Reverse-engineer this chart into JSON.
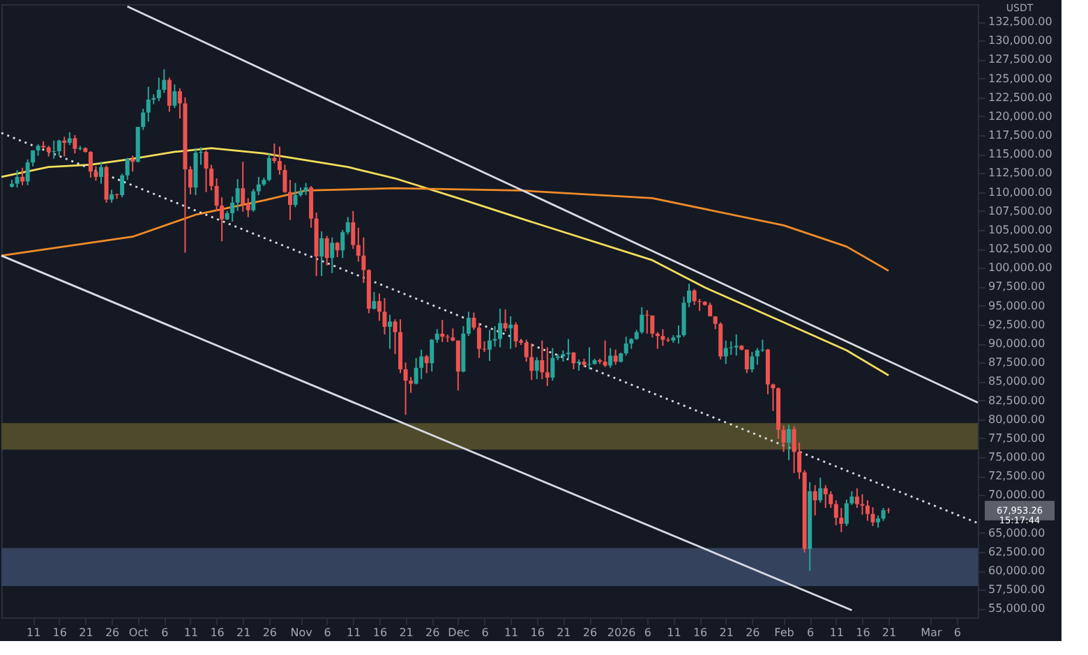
{
  "chart_data": {
    "type": "candlestick",
    "x": [
      "2025-09-07",
      "2025-09-08",
      "2025-09-09",
      "2025-09-10",
      "2025-09-11",
      "2025-09-12",
      "2025-09-13",
      "2025-09-14",
      "2025-09-15",
      "2025-09-16",
      "2025-09-17",
      "2025-09-18",
      "2025-09-19",
      "2025-09-20",
      "2025-09-21",
      "2025-09-22",
      "2025-09-23",
      "2025-09-24",
      "2025-09-25",
      "2025-09-26",
      "2025-09-27",
      "2025-09-28",
      "2025-09-29",
      "2025-09-30",
      "2025-10-01",
      "2025-10-02",
      "2025-10-03",
      "2025-10-04",
      "2025-10-05",
      "2025-10-06",
      "2025-10-07",
      "2025-10-08",
      "2025-10-09",
      "2025-10-10",
      "2025-10-11",
      "2025-10-12",
      "2025-10-13",
      "2025-10-14",
      "2025-10-15",
      "2025-10-16",
      "2025-10-17",
      "2025-10-18",
      "2025-10-19",
      "2025-10-20",
      "2025-10-21",
      "2025-10-22",
      "2025-10-23",
      "2025-10-24",
      "2025-10-25",
      "2025-10-26",
      "2025-10-27",
      "2025-10-28",
      "2025-10-29",
      "2025-10-30",
      "2025-10-31",
      "2025-11-01",
      "2025-11-02",
      "2025-11-03",
      "2025-11-04",
      "2025-11-05",
      "2025-11-06",
      "2025-11-07",
      "2025-11-08",
      "2025-11-09",
      "2025-11-10",
      "2025-11-11",
      "2025-11-12",
      "2025-11-13",
      "2025-11-14",
      "2025-11-15",
      "2025-11-16",
      "2025-11-17",
      "2025-11-18",
      "2025-11-19",
      "2025-11-20",
      "2025-11-21",
      "2025-11-22",
      "2025-11-23",
      "2025-11-24",
      "2025-11-25",
      "2025-11-26",
      "2025-11-27",
      "2025-11-28",
      "2025-11-29",
      "2025-11-30",
      "2025-12-01",
      "2025-12-02",
      "2025-12-03",
      "2025-12-04",
      "2025-12-05",
      "2025-12-06",
      "2025-12-07",
      "2025-12-08",
      "2025-12-09",
      "2025-12-10",
      "2025-12-11",
      "2025-12-12",
      "2025-12-13",
      "2025-12-14",
      "2025-12-15",
      "2025-12-16",
      "2025-12-17",
      "2025-12-18",
      "2025-12-19",
      "2025-12-20",
      "2025-12-21",
      "2025-12-22",
      "2025-12-23",
      "2025-12-24",
      "2025-12-25",
      "2025-12-26",
      "2025-12-27",
      "2025-12-28",
      "2025-12-29",
      "2025-12-30",
      "2025-12-31",
      "2026-01-01",
      "2026-01-02",
      "2026-01-03",
      "2026-01-04",
      "2026-01-05",
      "2026-01-06",
      "2026-01-07",
      "2026-01-08",
      "2026-01-09",
      "2026-01-10",
      "2026-01-11",
      "2026-01-12",
      "2026-01-13",
      "2026-01-14",
      "2026-01-15",
      "2026-01-16",
      "2026-01-17",
      "2026-01-18",
      "2026-01-19",
      "2026-01-20",
      "2026-01-21",
      "2026-01-22",
      "2026-01-23",
      "2026-01-24",
      "2026-01-25",
      "2026-01-26",
      "2026-01-27",
      "2026-01-28",
      "2026-01-29",
      "2026-01-30",
      "2026-01-31",
      "2026-02-01",
      "2026-02-02",
      "2026-02-03",
      "2026-02-04",
      "2026-02-05",
      "2026-02-06",
      "2026-02-07",
      "2026-02-08",
      "2026-02-09",
      "2026-02-10",
      "2026-02-11",
      "2026-02-12",
      "2026-02-13",
      "2026-02-14",
      "2026-02-15",
      "2026-02-16",
      "2026-02-17",
      "2026-02-18",
      "2026-02-19",
      "2026-02-20",
      "2026-02-21"
    ],
    "ohlc": [
      [
        110700,
        111600,
        110600,
        111100
      ],
      [
        111100,
        112900,
        110600,
        112000
      ],
      [
        112000,
        113200,
        110900,
        111400
      ],
      [
        111400,
        114300,
        110900,
        113900
      ],
      [
        113900,
        115500,
        113400,
        115500
      ],
      [
        115500,
        116300,
        114800,
        116100
      ],
      [
        116100,
        116700,
        115700,
        115900
      ],
      [
        115900,
        116100,
        114700,
        115300
      ],
      [
        115300,
        116800,
        114400,
        115400
      ],
      [
        115400,
        116900,
        114800,
        116800
      ],
      [
        116800,
        117300,
        114700,
        116500
      ],
      [
        116500,
        117900,
        116200,
        117100
      ],
      [
        117100,
        117500,
        115100,
        115700
      ],
      [
        115700,
        116100,
        115500,
        115800
      ],
      [
        115800,
        115900,
        115200,
        115300
      ],
      [
        115300,
        115400,
        111900,
        112700
      ],
      [
        112700,
        113400,
        111500,
        112000
      ],
      [
        112000,
        114000,
        111100,
        113300
      ],
      [
        113300,
        113500,
        108600,
        109000
      ],
      [
        109000,
        110300,
        108600,
        109700
      ],
      [
        109700,
        109800,
        109100,
        109600
      ],
      [
        109600,
        112400,
        109300,
        112200
      ],
      [
        112200,
        114500,
        111600,
        114400
      ],
      [
        114400,
        114800,
        112700,
        114000
      ],
      [
        114000,
        118600,
        113900,
        118600
      ],
      [
        118600,
        121000,
        118200,
        120500
      ],
      [
        120500,
        123900,
        119300,
        122200
      ],
      [
        122200,
        122900,
        121600,
        122400
      ],
      [
        122400,
        125100,
        122000,
        123500
      ],
      [
        123500,
        126200,
        123100,
        124800
      ],
      [
        124800,
        125100,
        120600,
        121400
      ],
      [
        121400,
        124200,
        121100,
        123300
      ],
      [
        123300,
        123700,
        119700,
        121700
      ],
      [
        121700,
        122500,
        102000,
        113000
      ],
      [
        113000,
        113400,
        109700,
        110600
      ],
      [
        110600,
        115800,
        109600,
        115200
      ],
      [
        115200,
        115900,
        113600,
        115300
      ],
      [
        115300,
        115500,
        110000,
        113100
      ],
      [
        113100,
        113600,
        110200,
        110800
      ],
      [
        110800,
        111800,
        107500,
        108200
      ],
      [
        108200,
        109300,
        103500,
        106400
      ],
      [
        106400,
        107500,
        106300,
        107200
      ],
      [
        107200,
        109400,
        106100,
        108600
      ],
      [
        108600,
        111700,
        107500,
        110500
      ],
      [
        110500,
        114000,
        107400,
        108400
      ],
      [
        108400,
        109200,
        106700,
        107600
      ],
      [
        107600,
        110400,
        107400,
        110100
      ],
      [
        110100,
        112000,
        109600,
        111000
      ],
      [
        111000,
        111900,
        110800,
        111600
      ],
      [
        111600,
        115000,
        111400,
        114500
      ],
      [
        114500,
        116400,
        113800,
        114100
      ],
      [
        114100,
        116000,
        112300,
        112900
      ],
      [
        112900,
        113600,
        109900,
        110000
      ],
      [
        110000,
        111600,
        106300,
        108300
      ],
      [
        108300,
        111200,
        108000,
        109600
      ],
      [
        109600,
        110600,
        109400,
        110100
      ],
      [
        110100,
        111200,
        109600,
        110600
      ],
      [
        110600,
        110800,
        105300,
        106500
      ],
      [
        106500,
        107300,
        98900,
        101500
      ],
      [
        101500,
        104800,
        98900,
        103900
      ],
      [
        103900,
        104200,
        100300,
        101300
      ],
      [
        101300,
        104000,
        99300,
        103300
      ],
      [
        103300,
        103400,
        101400,
        102300
      ],
      [
        102300,
        105000,
        101300,
        104700
      ],
      [
        104700,
        106700,
        104400,
        106000
      ],
      [
        106000,
        107500,
        102500,
        103000
      ],
      [
        103000,
        105300,
        100800,
        101600
      ],
      [
        101600,
        104000,
        98000,
        99700
      ],
      [
        99700,
        99800,
        94000,
        94600
      ],
      [
        94600,
        96800,
        94500,
        95600
      ],
      [
        95600,
        96600,
        93000,
        94200
      ],
      [
        94200,
        96000,
        91200,
        92200
      ],
      [
        92200,
        93800,
        89300,
        92900
      ],
      [
        92900,
        93200,
        88600,
        91500
      ],
      [
        91500,
        93200,
        86100,
        86600
      ],
      [
        86600,
        87500,
        80600,
        85100
      ],
      [
        85100,
        85600,
        83500,
        84700
      ],
      [
        84700,
        88100,
        84600,
        86800
      ],
      [
        86800,
        89200,
        85300,
        88300
      ],
      [
        88300,
        88500,
        86100,
        87400
      ],
      [
        87400,
        90600,
        86300,
        90500
      ],
      [
        90500,
        91900,
        90100,
        91300
      ],
      [
        91300,
        93100,
        90200,
        90900
      ],
      [
        90900,
        91200,
        90200,
        90800
      ],
      [
        90800,
        92000,
        90300,
        90400
      ],
      [
        90400,
        90400,
        83800,
        86300
      ],
      [
        86300,
        92300,
        86200,
        91300
      ],
      [
        91300,
        94200,
        91000,
        93400
      ],
      [
        93400,
        94100,
        91800,
        92100
      ],
      [
        92100,
        92700,
        88100,
        89300
      ],
      [
        89300,
        90300,
        88900,
        89200
      ],
      [
        89200,
        91800,
        87700,
        90400
      ],
      [
        90400,
        92300,
        89600,
        90600
      ],
      [
        90600,
        94600,
        89500,
        92700
      ],
      [
        92700,
        94500,
        91600,
        92000
      ],
      [
        92000,
        93600,
        89300,
        92500
      ],
      [
        92500,
        92800,
        89500,
        90300
      ],
      [
        90300,
        90600,
        89800,
        90100
      ],
      [
        90100,
        90500,
        87600,
        88200
      ],
      [
        88200,
        90000,
        85200,
        86400
      ],
      [
        86400,
        88200,
        85300,
        87800
      ],
      [
        87800,
        90400,
        85300,
        86200
      ],
      [
        86200,
        89500,
        84400,
        85500
      ],
      [
        85500,
        89400,
        85100,
        88100
      ],
      [
        88100,
        88600,
        87800,
        88300
      ],
      [
        88300,
        89100,
        87600,
        88600
      ],
      [
        88600,
        90600,
        87900,
        88800
      ],
      [
        88800,
        88900,
        86600,
        87400
      ],
      [
        87400,
        87900,
        86400,
        87600
      ],
      [
        87600,
        88000,
        86900,
        87200
      ],
      [
        87200,
        89500,
        86600,
        87300
      ],
      [
        87300,
        88000,
        87200,
        87800
      ],
      [
        87800,
        88000,
        87300,
        87600
      ],
      [
        87600,
        90400,
        86900,
        87100
      ],
      [
        87100,
        89400,
        86800,
        88400
      ],
      [
        88400,
        89200,
        87200,
        87600
      ],
      [
        87600,
        88800,
        87500,
        88700
      ],
      [
        88700,
        90900,
        88400,
        90000
      ],
      [
        90000,
        90700,
        89300,
        90600
      ],
      [
        90600,
        91800,
        90500,
        91500
      ],
      [
        91500,
        94800,
        91300,
        93800
      ],
      [
        93800,
        94400,
        91300,
        93700
      ],
      [
        93700,
        93700,
        90800,
        91300
      ],
      [
        91300,
        91500,
        89300,
        91000
      ],
      [
        91000,
        91900,
        89700,
        90500
      ],
      [
        90500,
        90800,
        90200,
        90400
      ],
      [
        90400,
        91100,
        90100,
        90800
      ],
      [
        90800,
        92400,
        90000,
        91100
      ],
      [
        91100,
        96200,
        90900,
        95400
      ],
      [
        95400,
        97900,
        94800,
        97000
      ],
      [
        97000,
        97200,
        95100,
        95600
      ],
      [
        95600,
        95900,
        94300,
        95500
      ],
      [
        95500,
        95600,
        95000,
        95100
      ],
      [
        95100,
        95400,
        93600,
        93600
      ],
      [
        93600,
        93600,
        91900,
        92600
      ],
      [
        92600,
        92800,
        87900,
        88300
      ],
      [
        88300,
        90400,
        87300,
        89400
      ],
      [
        89400,
        90300,
        88500,
        89500
      ],
      [
        89500,
        91200,
        88400,
        89700
      ],
      [
        89700,
        89800,
        89100,
        89200
      ],
      [
        89200,
        89200,
        86100,
        86600
      ],
      [
        86600,
        88900,
        86200,
        88300
      ],
      [
        88300,
        89400,
        87200,
        89100
      ],
      [
        89100,
        90500,
        88900,
        89200
      ],
      [
        89200,
        89300,
        83300,
        84600
      ],
      [
        84600,
        84700,
        81100,
        84100
      ],
      [
        84100,
        84200,
        77400,
        78600
      ],
      [
        78600,
        79200,
        75700,
        76900
      ],
      [
        76900,
        79300,
        74600,
        78700
      ],
      [
        78700,
        79100,
        72900,
        75700
      ],
      [
        75700,
        76900,
        72100,
        73000
      ],
      [
        73000,
        73300,
        62400,
        62900
      ],
      [
        62900,
        71700,
        60000,
        70500
      ],
      [
        70500,
        71300,
        67300,
        69300
      ],
      [
        69300,
        72300,
        69000,
        70900
      ],
      [
        70900,
        71300,
        68300,
        70100
      ],
      [
        70100,
        70500,
        68300,
        68800
      ],
      [
        68800,
        69300,
        66000,
        67000
      ],
      [
        67000,
        68300,
        65100,
        66200
      ],
      [
        66200,
        69400,
        65900,
        68900
      ],
      [
        68900,
        70500,
        68700,
        69800
      ],
      [
        69800,
        70900,
        68300,
        68800
      ],
      [
        68800,
        70100,
        67400,
        68600
      ],
      [
        68600,
        69300,
        66600,
        67500
      ],
      [
        67500,
        68400,
        65900,
        66400
      ],
      [
        66400,
        67300,
        65700,
        66900
      ],
      [
        66900,
        68300,
        66600,
        68000
      ],
      [
        68000,
        68300,
        67600,
        67953.26
      ]
    ],
    "colors": [
      "#26a69a",
      "#26a69a",
      "#ef5350",
      "#26a69a",
      "#26a69a",
      "#26a69a",
      "#ef5350",
      "#ef5350",
      "#26a69a",
      "#26a69a",
      "#ef5350",
      "#26a69a",
      "#ef5350",
      "#26a69a",
      "#ef5350",
      "#ef5350",
      "#ef5350",
      "#26a69a",
      "#ef5350",
      "#26a69a",
      "#ef5350",
      "#26a69a",
      "#26a69a",
      "#ef5350",
      "#26a69a",
      "#26a69a",
      "#26a69a",
      "#26a69a",
      "#26a69a",
      "#26a69a",
      "#ef5350",
      "#26a69a",
      "#ef5350",
      "#ef5350",
      "#ef5350",
      "#26a69a",
      "#26a69a",
      "#ef5350",
      "#ef5350",
      "#ef5350",
      "#ef5350",
      "#26a69a",
      "#26a69a",
      "#26a69a",
      "#ef5350",
      "#ef5350",
      "#26a69a",
      "#26a69a",
      "#26a69a",
      "#26a69a",
      "#ef5350",
      "#ef5350",
      "#ef5350",
      "#ef5350",
      "#26a69a",
      "#26a69a",
      "#26a69a",
      "#ef5350",
      "#ef5350",
      "#26a69a",
      "#ef5350",
      "#26a69a",
      "#ef5350",
      "#26a69a",
      "#26a69a",
      "#ef5350",
      "#ef5350",
      "#ef5350",
      "#ef5350",
      "#26a69a",
      "#ef5350",
      "#ef5350",
      "#26a69a",
      "#ef5350",
      "#ef5350",
      "#ef5350",
      "#ef5350",
      "#26a69a",
      "#26a69a",
      "#ef5350",
      "#26a69a",
      "#26a69a",
      "#ef5350",
      "#ef5350",
      "#ef5350",
      "#ef5350",
      "#26a69a",
      "#26a69a",
      "#ef5350",
      "#ef5350",
      "#ef5350",
      "#26a69a",
      "#26a69a",
      "#26a69a",
      "#ef5350",
      "#26a69a",
      "#ef5350",
      "#ef5350",
      "#ef5350",
      "#ef5350",
      "#26a69a",
      "#ef5350",
      "#ef5350",
      "#26a69a",
      "#26a69a",
      "#26a69a",
      "#26a69a",
      "#ef5350",
      "#26a69a",
      "#ef5350",
      "#26a69a",
      "#26a69a",
      "#ef5350",
      "#ef5350",
      "#26a69a",
      "#ef5350",
      "#26a69a",
      "#26a69a",
      "#26a69a",
      "#26a69a",
      "#26a69a",
      "#ef5350",
      "#ef5350",
      "#ef5350",
      "#ef5350",
      "#ef5350",
      "#26a69a",
      "#26a69a",
      "#26a69a",
      "#26a69a",
      "#ef5350",
      "#ef5350",
      "#ef5350",
      "#ef5350",
      "#ef5350",
      "#ef5350",
      "#26a69a",
      "#26a69a",
      "#26a69a",
      "#ef5350",
      "#ef5350",
      "#26a69a",
      "#26a69a",
      "#26a69a",
      "#ef5350",
      "#ef5350",
      "#ef5350",
      "#ef5350",
      "#26a69a",
      "#ef5350",
      "#ef5350",
      "#ef5350",
      "#26a69a",
      "#ef5350",
      "#26a69a",
      "#ef5350",
      "#ef5350",
      "#ef5350",
      "#ef5350",
      "#26a69a",
      "#26a69a",
      "#ef5350",
      "#ef5350",
      "#ef5350",
      "#ef5350",
      "#26a69a",
      "#26a69a",
      "#ef5350"
    ],
    "series": [
      {
        "type": "line",
        "color": "#f2de5a",
        "line_style": "solid",
        "x": [
          "2025-09-05",
          "2025-09-14",
          "2025-09-22",
          "2025-09-30",
          "2025-10-08",
          "2025-10-15",
          "2025-10-25",
          "2025-11-02",
          "2025-11-10",
          "2025-11-19",
          "2025-12-01",
          "2025-12-13",
          "2026-01-07",
          "2026-01-17",
          "2026-02-01",
          "2026-02-13",
          "2026-02-21"
        ],
        "values": [
          112000,
          113300,
          113600,
          114400,
          115300,
          115800,
          115100,
          114200,
          113300,
          111800,
          109200,
          106500,
          101000,
          97400,
          92800,
          89100,
          85800
        ]
      },
      {
        "type": "line",
        "color": "#f08c28",
        "line_style": "solid",
        "x": [
          "2025-09-05",
          "2025-09-30",
          "2025-10-12",
          "2025-10-25",
          "2025-11-02",
          "2025-11-19",
          "2025-12-13",
          "2026-01-07",
          "2026-02-01",
          "2026-02-13",
          "2026-02-21"
        ],
        "values": [
          101600,
          104100,
          107000,
          108900,
          110200,
          110500,
          110200,
          109200,
          105600,
          102800,
          99600
        ]
      },
      {
        "type": "line",
        "color": "#d8dbe2",
        "line_style": "solid",
        "x": [
          "2025-09-29",
          "2026-03-10"
        ],
        "values": [
          134500,
          82200
        ]
      },
      {
        "type": "line",
        "color": "#d8dbe2",
        "line_style": "solid",
        "x": [
          "2025-09-05",
          "2026-02-14"
        ],
        "values": [
          101600,
          54800
        ]
      },
      {
        "type": "line",
        "color": "#d8dbe2",
        "line_style": "dotted",
        "x": [
          "2025-09-05",
          "2026-03-10"
        ],
        "values": [
          117800,
          66300
        ]
      }
    ],
    "bands": [
      {
        "axis": "y",
        "from": 76000,
        "to": 79500,
        "color": "#4e4b2c"
      },
      {
        "axis": "y",
        "from": 58000,
        "to": 63000,
        "color": "#34425e"
      }
    ],
    "xlim": [
      "2025-09-05",
      "2026-03-10"
    ],
    "xticks": [
      {
        "value": "2025-09-11",
        "label": "11"
      },
      {
        "value": "2025-09-16",
        "label": "16"
      },
      {
        "value": "2025-09-21",
        "label": "21"
      },
      {
        "value": "2025-09-26",
        "label": "26"
      },
      {
        "value": "2025-10-01",
        "label": "Oct"
      },
      {
        "value": "2025-10-06",
        "label": "6"
      },
      {
        "value": "2025-10-11",
        "label": "11"
      },
      {
        "value": "2025-10-16",
        "label": "16"
      },
      {
        "value": "2025-10-21",
        "label": "21"
      },
      {
        "value": "2025-10-26",
        "label": "26"
      },
      {
        "value": "2025-11-01",
        "label": "Nov"
      },
      {
        "value": "2025-11-06",
        "label": "6"
      },
      {
        "value": "2025-11-11",
        "label": "11"
      },
      {
        "value": "2025-11-16",
        "label": "16"
      },
      {
        "value": "2025-11-21",
        "label": "21"
      },
      {
        "value": "2025-11-26",
        "label": "26"
      },
      {
        "value": "2025-12-01",
        "label": "Dec"
      },
      {
        "value": "2025-12-06",
        "label": "6"
      },
      {
        "value": "2025-12-11",
        "label": "11"
      },
      {
        "value": "2025-12-16",
        "label": "16"
      },
      {
        "value": "2025-12-21",
        "label": "21"
      },
      {
        "value": "2025-12-26",
        "label": "26"
      },
      {
        "value": "2026-01-01",
        "label": "2026"
      },
      {
        "value": "2026-01-06",
        "label": "6"
      },
      {
        "value": "2026-01-11",
        "label": "11"
      },
      {
        "value": "2026-01-16",
        "label": "16"
      },
      {
        "value": "2026-01-21",
        "label": "21"
      },
      {
        "value": "2026-01-26",
        "label": "26"
      },
      {
        "value": "2026-02-01",
        "label": "Feb"
      },
      {
        "value": "2026-02-06",
        "label": "6"
      },
      {
        "value": "2026-02-11",
        "label": "11"
      },
      {
        "value": "2026-02-16",
        "label": "16"
      },
      {
        "value": "2026-02-21",
        "label": "21"
      },
      {
        "value": "2026-03-01",
        "label": "Mar"
      },
      {
        "value": "2026-03-06",
        "label": "6"
      }
    ],
    "ylim": [
      53850,
      134800
    ],
    "yticks": [
      {
        "value": 55000,
        "label": "55,000.00"
      },
      {
        "value": 57500,
        "label": "57,500.00"
      },
      {
        "value": 60000,
        "label": "60,000.00"
      },
      {
        "value": 62500,
        "label": "62,500.00"
      },
      {
        "value": 65000,
        "label": "65,000.00"
      },
      {
        "value": 70000,
        "label": "70,000.00"
      },
      {
        "value": 72500,
        "label": "72,500.00"
      },
      {
        "value": 75000,
        "label": "75,000.00"
      },
      {
        "value": 77500,
        "label": "77,500.00"
      },
      {
        "value": 80000,
        "label": "80,000.00"
      },
      {
        "value": 82500,
        "label": "82,500.00"
      },
      {
        "value": 85000,
        "label": "85,000.00"
      },
      {
        "value": 87500,
        "label": "87,500.00"
      },
      {
        "value": 90000,
        "label": "90,000.00"
      },
      {
        "value": 92500,
        "label": "92,500.00"
      },
      {
        "value": 95000,
        "label": "95,000.00"
      },
      {
        "value": 97500,
        "label": "97,500.00"
      },
      {
        "value": 100000,
        "label": "100,000.00"
      },
      {
        "value": 102500,
        "label": "102,500.00"
      },
      {
        "value": 105000,
        "label": "105,000.00"
      },
      {
        "value": 107500,
        "label": "107,500.00"
      },
      {
        "value": 110000,
        "label": "110,000.00"
      },
      {
        "value": 112500,
        "label": "112,500.00"
      },
      {
        "value": 115000,
        "label": "115,000.00"
      },
      {
        "value": 117500,
        "label": "117,500.00"
      },
      {
        "value": 120000,
        "label": "120,000.00"
      },
      {
        "value": 122500,
        "label": "122,500.00"
      },
      {
        "value": 125000,
        "label": "125,000.00"
      },
      {
        "value": 127500,
        "label": "127,500.00"
      },
      {
        "value": 130000,
        "label": "130,000.00"
      },
      {
        "value": 132500,
        "label": "132,500.00"
      }
    ],
    "annotations": [
      "USDT",
      "67,953.26\n15:17:44"
    ],
    "grid": false
  }
}
